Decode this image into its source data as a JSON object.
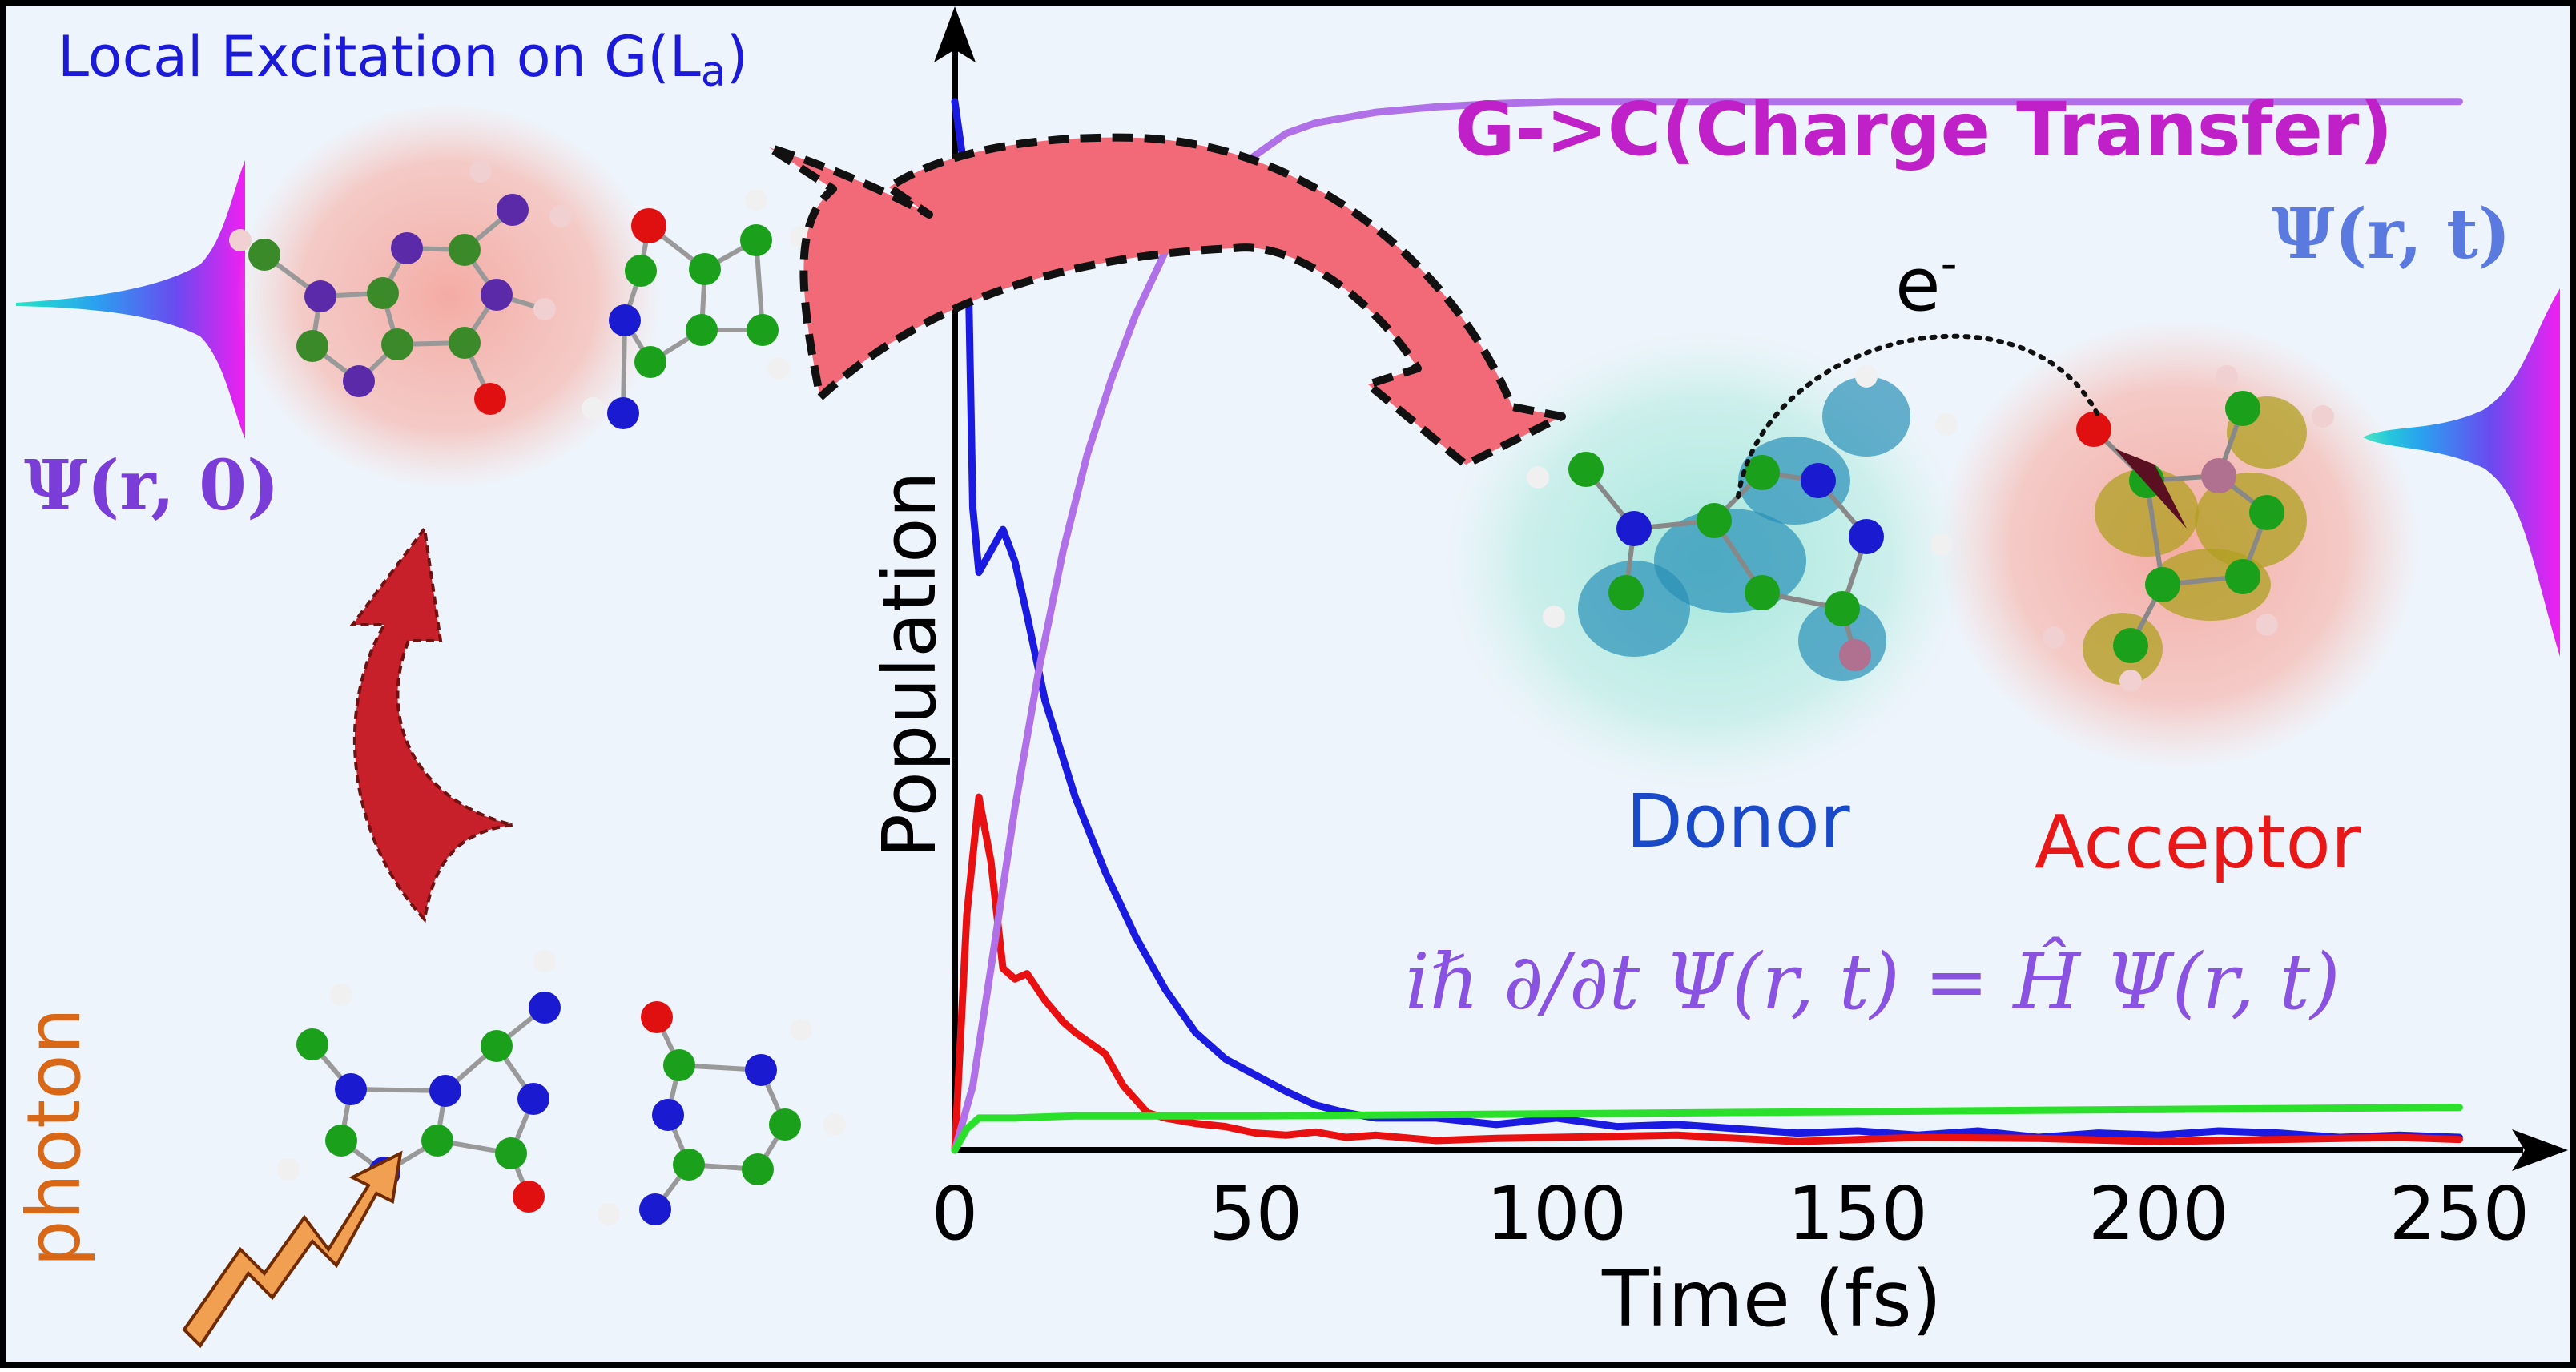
{
  "labels": {
    "local_excitation": "Local Excitation on G(L",
    "local_excitation_sub": "a",
    "local_excitation_close": ")",
    "charge_transfer": "G->C(Charge Transfer)",
    "psi_zero": "Ψ(r, 0)",
    "psi_t": "Ψ(r, t)",
    "electron": "e",
    "electron_sup": "-",
    "donor": "Donor",
    "acceptor": "Acceptor",
    "equation": "iℏ ∂/∂t Ψ(r, t) = Ĥ Ψ(r, t)",
    "photon": "photon"
  },
  "colors": {
    "background": "#eef4fb",
    "frame": "#000000",
    "arrow_fill": "#f26a78",
    "arrow_edge": "#b01828",
    "excitation_arrow": "#c8202a",
    "photon_arrow": "#f0a050",
    "donor_glow": "#9ee6d8",
    "acceptor_glow": "#f5b0a8",
    "carbon_atom": "#1aa01a",
    "nitrogen_atom": "#1a1ad0",
    "oxygen_atom": "#e01010",
    "hydrogen_atom": "#f0f0f0",
    "donor_orbital": "#2a90b8",
    "acceptor_orbital": "#b0a020"
  },
  "icons": [
    "curved-transfer-arrow",
    "excitation-arrow",
    "photon-zigzag-arrow",
    "wavepacket-gaussian",
    "molecule-ball-stick",
    "electron-hop-dotted-arrow"
  ],
  "chart_data": {
    "type": "line",
    "title": "",
    "xlabel": "Time (fs)",
    "ylabel": "Population",
    "xlim": [
      0,
      255
    ],
    "ylim": [
      0,
      1
    ],
    "x_ticks": [
      "0",
      "50",
      "100",
      "150",
      "200",
      "250"
    ],
    "x_tick_values": [
      0,
      50,
      100,
      150,
      200,
      250
    ],
    "grid": false,
    "legend": "none",
    "series": [
      {
        "color": "#1a1ae0",
        "x": [
          0,
          2,
          3,
          4,
          6,
          8,
          10,
          12,
          15,
          20,
          25,
          30,
          35,
          40,
          45,
          50,
          55,
          60,
          65,
          70,
          80,
          90,
          100,
          110,
          120,
          130,
          140,
          150,
          160,
          170,
          180,
          190,
          200,
          210,
          220,
          230,
          240,
          250
        ],
        "y": [
          0.98,
          0.9,
          0.6,
          0.54,
          0.56,
          0.58,
          0.55,
          0.5,
          0.42,
          0.33,
          0.26,
          0.2,
          0.15,
          0.11,
          0.085,
          0.07,
          0.055,
          0.042,
          0.035,
          0.03,
          0.03,
          0.024,
          0.03,
          0.022,
          0.024,
          0.02,
          0.016,
          0.018,
          0.014,
          0.018,
          0.012,
          0.016,
          0.014,
          0.018,
          0.016,
          0.012,
          0.014,
          0.012
        ]
      },
      {
        "color": "#e81010",
        "x": [
          0,
          2,
          4,
          6,
          8,
          10,
          12,
          15,
          18,
          20,
          25,
          28,
          32,
          35,
          40,
          45,
          50,
          55,
          60,
          65,
          70,
          80,
          90,
          100,
          120,
          140,
          160,
          180,
          200,
          220,
          240,
          250
        ],
        "y": [
          0.0,
          0.22,
          0.33,
          0.27,
          0.17,
          0.16,
          0.165,
          0.14,
          0.12,
          0.11,
          0.09,
          0.06,
          0.035,
          0.03,
          0.025,
          0.022,
          0.016,
          0.014,
          0.017,
          0.012,
          0.014,
          0.009,
          0.011,
          0.012,
          0.014,
          0.008,
          0.012,
          0.011,
          0.008,
          0.01,
          0.012,
          0.01
        ]
      },
      {
        "color": "#b070e8",
        "x": [
          0,
          3,
          6,
          10,
          14,
          18,
          22,
          26,
          30,
          35,
          40,
          45,
          50,
          55,
          60,
          65,
          70,
          80,
          90,
          100,
          120,
          150,
          200,
          250
        ],
        "y": [
          0.0,
          0.06,
          0.17,
          0.32,
          0.45,
          0.56,
          0.65,
          0.72,
          0.78,
          0.84,
          0.88,
          0.91,
          0.93,
          0.95,
          0.96,
          0.965,
          0.97,
          0.975,
          0.978,
          0.98,
          0.98,
          0.98,
          0.98,
          0.98
        ]
      },
      {
        "color": "#2ae02a",
        "x": [
          0,
          2,
          4,
          6,
          10,
          20,
          50,
          100,
          150,
          200,
          250
        ],
        "y": [
          0.0,
          0.02,
          0.03,
          0.03,
          0.03,
          0.032,
          0.032,
          0.034,
          0.036,
          0.038,
          0.04
        ]
      }
    ]
  }
}
